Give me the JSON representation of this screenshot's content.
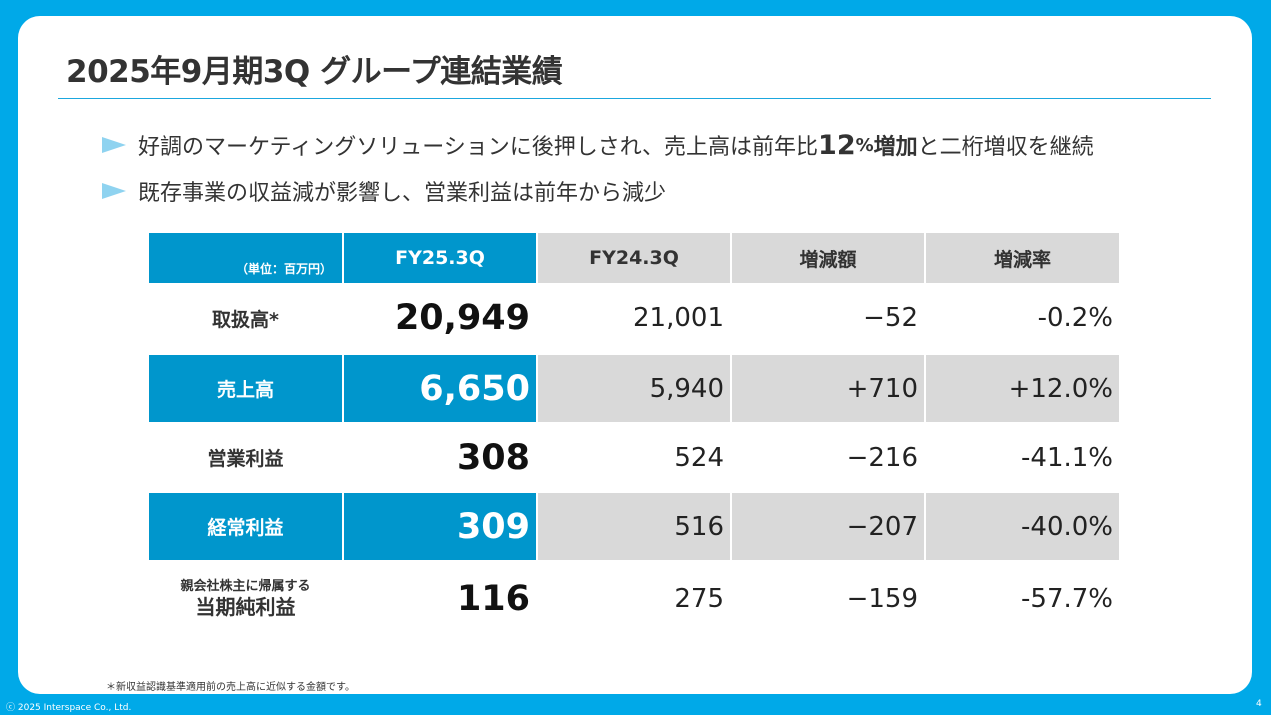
{
  "title": "2025年9月期3Q グループ連結業績",
  "bullets": [
    {
      "before": "好調のマーケティングソリューションに後押しされ、売上高は前年比",
      "num": "12",
      "pct": "%",
      "word": "増加",
      "after": "と二桁増収を継続"
    },
    {
      "text": "既存事業の収益減が影響し、営業利益は前年から減少"
    }
  ],
  "table": {
    "unit": "（単位：百万円）",
    "headers": [
      "FY25.3Q",
      "FY24.3Q",
      "増減額",
      "増減率"
    ],
    "rows": [
      {
        "label": "取扱高*",
        "cur": "20,949",
        "prev": "21,001",
        "diff": "−52",
        "rate": "-0.2%"
      },
      {
        "label": "売上高",
        "cur": "6,650",
        "prev": "5,940",
        "diff": "+710",
        "rate": "+12.0%"
      },
      {
        "label": "営業利益",
        "cur": "308",
        "prev": "524",
        "diff": "−216",
        "rate": "-41.1%"
      },
      {
        "label": "経常利益",
        "cur": "309",
        "prev": "516",
        "diff": "−207",
        "rate": "-40.0%"
      },
      {
        "sublabel": "親会社株主に帰属する",
        "label": "当期純利益",
        "cur": "116",
        "prev": "275",
        "diff": "−159",
        "rate": "-57.7%"
      }
    ]
  },
  "footnote": "＊新収益認識基準適用前の売上高に近似する金額です。",
  "copyright": "ⓒ 2025 Interspace Co., Ltd.",
  "page_number": "4",
  "colors": {
    "accent": "#00A9E8",
    "header_blue": "#0096CC",
    "gray": "#D9D9D9",
    "bullet": "#8FD3F0"
  }
}
